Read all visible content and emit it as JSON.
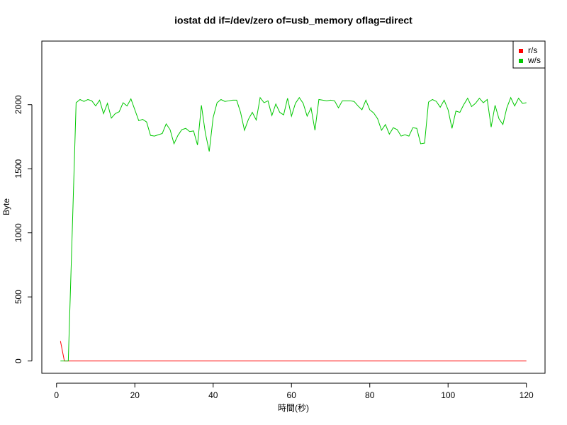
{
  "chart_data": {
    "type": "line",
    "title": "iostat dd if=/dev/zero of=usb_memory oflag=direct",
    "x_label": "時間(秒)",
    "y_label": "Byte",
    "x": [
      1,
      2,
      3,
      4,
      5,
      6,
      7,
      8,
      9,
      10,
      11,
      12,
      13,
      14,
      15,
      16,
      17,
      18,
      19,
      20,
      21,
      22,
      23,
      24,
      25,
      26,
      27,
      28,
      29,
      30,
      31,
      32,
      33,
      34,
      35,
      36,
      37,
      38,
      39,
      40,
      41,
      42,
      43,
      44,
      45,
      46,
      47,
      48,
      49,
      50,
      51,
      52,
      53,
      54,
      55,
      56,
      57,
      58,
      59,
      60,
      61,
      62,
      63,
      64,
      65,
      66,
      67,
      68,
      69,
      70,
      71,
      72,
      73,
      74,
      75,
      76,
      77,
      78,
      79,
      80,
      81,
      82,
      83,
      84,
      85,
      86,
      87,
      88,
      89,
      90,
      91,
      92,
      93,
      94,
      95,
      96,
      97,
      98,
      99,
      100,
      101,
      102,
      103,
      104,
      105,
      106,
      107,
      108,
      109,
      110,
      111,
      112,
      113,
      114,
      115,
      116,
      117,
      118,
      119,
      120
    ],
    "series": [
      {
        "name": "r/s",
        "color": "#ff0000",
        "values": [
          155,
          0,
          0,
          0,
          0,
          0,
          0,
          0,
          0,
          0,
          0,
          0,
          0,
          0,
          0,
          0,
          0,
          0,
          0,
          0,
          0,
          0,
          0,
          0,
          0,
          0,
          0,
          0,
          0,
          0,
          0,
          0,
          0,
          0,
          0,
          0,
          0,
          0,
          0,
          0,
          0,
          0,
          0,
          0,
          0,
          0,
          0,
          0,
          0,
          0,
          0,
          0,
          0,
          0,
          0,
          0,
          0,
          0,
          0,
          0,
          0,
          0,
          0,
          0,
          0,
          0,
          0,
          0,
          0,
          0,
          0,
          0,
          0,
          0,
          0,
          0,
          0,
          0,
          0,
          0,
          0,
          0,
          0,
          0,
          0,
          0,
          0,
          0,
          0,
          0,
          0,
          0,
          0,
          0,
          0,
          0,
          0,
          0,
          0,
          0,
          0,
          0,
          0,
          0,
          0,
          0,
          0,
          0,
          0,
          0,
          0,
          0,
          0,
          0,
          0,
          0,
          0,
          0,
          0,
          0
        ]
      },
      {
        "name": "w/s",
        "color": "#00c800",
        "values": [
          0,
          0,
          0,
          1000,
          2015,
          2040,
          2025,
          2040,
          2030,
          1990,
          2035,
          1930,
          2010,
          1895,
          1930,
          1945,
          2015,
          1990,
          2045,
          1960,
          1875,
          1885,
          1865,
          1760,
          1755,
          1765,
          1775,
          1850,
          1805,
          1695,
          1760,
          1805,
          1815,
          1790,
          1795,
          1685,
          1995,
          1780,
          1635,
          1900,
          2015,
          2040,
          2025,
          2030,
          2035,
          2035,
          1940,
          1800,
          1885,
          1940,
          1880,
          2055,
          2015,
          2030,
          1915,
          2005,
          1940,
          1920,
          2050,
          1910,
          2010,
          2055,
          2010,
          1910,
          1975,
          1800,
          2040,
          2035,
          2030,
          2035,
          2030,
          1975,
          2030,
          2030,
          2030,
          2025,
          1990,
          1960,
          2035,
          1960,
          1935,
          1890,
          1800,
          1845,
          1770,
          1820,
          1805,
          1755,
          1765,
          1755,
          1820,
          1815,
          1695,
          1700,
          2020,
          2040,
          2025,
          1980,
          2035,
          1960,
          1815,
          1950,
          1940,
          2000,
          2050,
          1985,
          2010,
          2050,
          2015,
          2040,
          1825,
          1995,
          1890,
          1845,
          1975,
          2055,
          1990,
          2050,
          2010,
          2015
        ]
      }
    ],
    "xlim": [
      -3.76,
      124.76
    ],
    "xticks": [
      0,
      20,
      40,
      60,
      80,
      100,
      120
    ],
    "ylim": [
      -96,
      2496
    ],
    "yticks": [
      0,
      500,
      1000,
      1500,
      2000
    ],
    "legend": "topright"
  }
}
